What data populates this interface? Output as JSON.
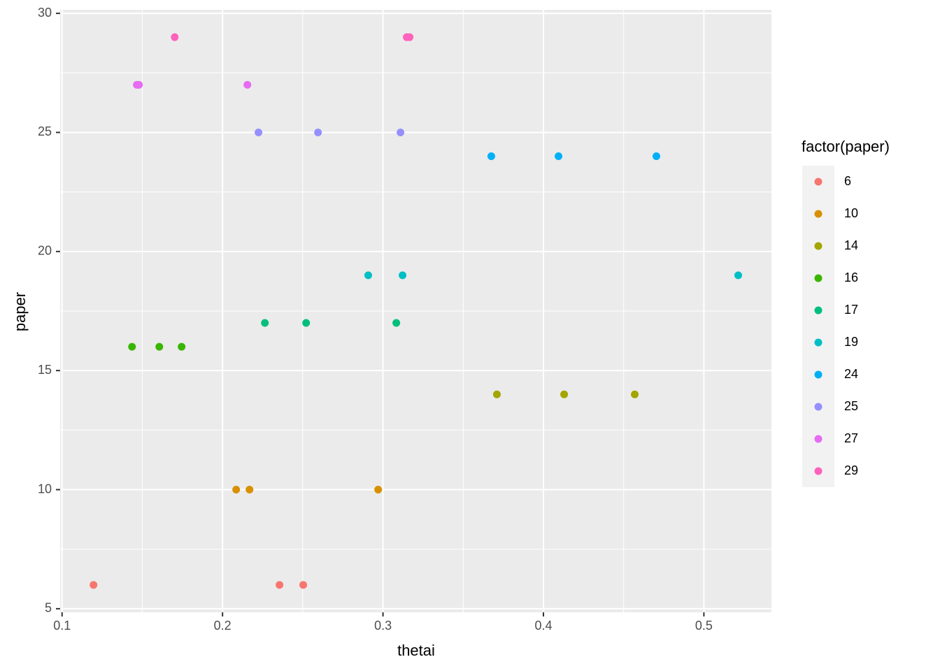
{
  "chart_data": {
    "type": "scatter",
    "x_label": "thetai",
    "y_label": "paper",
    "legend_title": "factor(paper)",
    "xlim": [
      0.0988,
      0.5421
    ],
    "ylim": [
      4.85,
      30.15
    ],
    "xticks": [
      0.1,
      0.2,
      0.3,
      0.4,
      0.5
    ],
    "yticks": [
      5,
      10,
      15,
      20,
      25,
      30
    ],
    "grid": true,
    "legend_position": "right",
    "series": [
      {
        "name": "6",
        "color": "#F8766D",
        "x": [
          0.1196,
          0.2355,
          0.2503
        ],
        "values": [
          6,
          6,
          6
        ]
      },
      {
        "name": "10",
        "color": "#D89000",
        "x": [
          0.2085,
          0.2168,
          0.297
        ],
        "values": [
          10,
          10,
          10
        ]
      },
      {
        "name": "14",
        "color": "#A3A500",
        "x": [
          0.371,
          0.4129,
          0.4569
        ],
        "values": [
          14,
          14,
          14
        ]
      },
      {
        "name": "16",
        "color": "#39B600",
        "x": [
          0.1436,
          0.1606,
          0.1745
        ],
        "values": [
          16,
          16,
          16
        ]
      },
      {
        "name": "17",
        "color": "#00BF7D",
        "x": [
          0.2264,
          0.2521,
          0.3083
        ],
        "values": [
          17,
          17,
          17
        ]
      },
      {
        "name": "19",
        "color": "#00BFC4",
        "x": [
          0.2908,
          0.3122,
          0.5214
        ],
        "values": [
          19,
          19,
          19
        ]
      },
      {
        "name": "24",
        "color": "#00B0F6",
        "x": [
          0.3675,
          0.4094,
          0.4704
        ],
        "values": [
          24,
          24,
          24
        ]
      },
      {
        "name": "25",
        "color": "#9590FF",
        "x": [
          0.2224,
          0.2595,
          0.3109
        ],
        "values": [
          25,
          25,
          25
        ]
      },
      {
        "name": "27",
        "color": "#E76BF3",
        "x": [
          0.1466,
          0.1479,
          0.2155
        ],
        "values": [
          27,
          27,
          27
        ]
      },
      {
        "name": "29",
        "color": "#FF62BC",
        "x": [
          0.1702,
          0.3148,
          0.3166
        ],
        "values": [
          29,
          29,
          29
        ]
      }
    ]
  }
}
